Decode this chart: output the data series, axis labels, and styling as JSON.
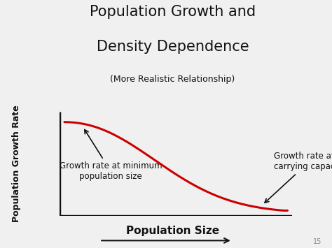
{
  "title_line1": "Population Growth and",
  "title_line2": "Density Dependence",
  "subtitle": "(More Realistic Relationship)",
  "xlabel": "Population Size",
  "ylabel": "Population Growth Rate",
  "curve_color": "#cc0000",
  "curve_linewidth": 2.2,
  "axis_color": "#111111",
  "background_color": "#f0f0f0",
  "annotation1_text": "Growth rate at minimum\npopulation size",
  "annotation2_text": "Growth rate at\ncarrying capacity",
  "arrow_color": "#111111",
  "title_fontsize": 15,
  "subtitle_fontsize": 9,
  "xlabel_fontsize": 11,
  "ylabel_fontsize": 9,
  "annotation_fontsize": 8.5,
  "page_number": "15"
}
